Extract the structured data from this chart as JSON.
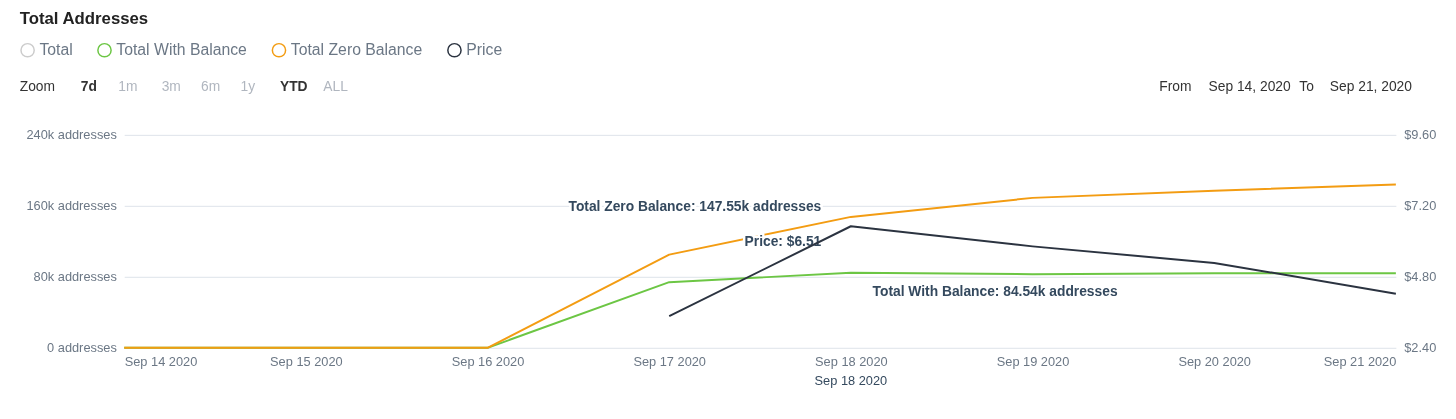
{
  "chart_data": {
    "type": "line",
    "title": "Total Addresses",
    "x": [
      "2020-09-14",
      "2020-09-15",
      "2020-09-16",
      "2020-09-17",
      "2020-09-18",
      "2020-09-19",
      "2020-09-20",
      "2020-09-21"
    ],
    "series": [
      {
        "name": "Total",
        "color": "#cccccc",
        "values": [
          null,
          null,
          null,
          null,
          null,
          null,
          null,
          null
        ]
      },
      {
        "name": "Total With Balance",
        "color": "#6cc644",
        "values": [
          0,
          0,
          0,
          74000,
          84540,
          83000,
          84000,
          84000
        ]
      },
      {
        "name": "Total Zero Balance",
        "color": "#f39c12",
        "values": [
          0,
          0,
          0,
          105000,
          147550,
          169000,
          177000,
          184000
        ]
      },
      {
        "name": "Price",
        "color": "#2b3340",
        "axis": "y2",
        "values": [
          null,
          null,
          null,
          3.47,
          6.51,
          5.83,
          5.27,
          4.23
        ]
      }
    ],
    "xlim": [
      "2020-09-14",
      "2020-09-21"
    ],
    "xticks": [
      {
        "value": "2020-09-14",
        "label": "Sep 14 2020"
      },
      {
        "value": "2020-09-15",
        "label": "Sep 15 2020"
      },
      {
        "value": "2020-09-16",
        "label": "Sep 16 2020"
      },
      {
        "value": "2020-09-17",
        "label": "Sep 17 2020"
      },
      {
        "value": "2020-09-18",
        "label": "Sep 18 2020"
      },
      {
        "value": "2020-09-19",
        "label": "Sep 19 2020"
      },
      {
        "value": "2020-09-20",
        "label": "Sep 20 2020"
      },
      {
        "value": "2020-09-21",
        "label": "Sep 21 2020"
      }
    ],
    "ylim": [
      0,
      240000
    ],
    "yticks": [
      {
        "value": 0,
        "label": "0 addresses"
      },
      {
        "value": 80000,
        "label": "80k addresses"
      },
      {
        "value": 160000,
        "label": "160k addresses"
      },
      {
        "value": 240000,
        "label": "240k addresses"
      }
    ],
    "y2lim": [
      2.4,
      9.6
    ],
    "y2ticks": [
      {
        "value": 2.4,
        "label": "$2.40"
      },
      {
        "value": 4.8,
        "label": "$4.80"
      },
      {
        "value": 7.2,
        "label": "$7.20"
      },
      {
        "value": 9.6,
        "label": "$9.60"
      }
    ],
    "grid": "y",
    "legend": "top left",
    "marker": "none",
    "line_style": "solid",
    "annotations": [
      {
        "text": "Total Zero Balance: 147.55k addresses",
        "x": "2020-09-18",
        "y": 147550
      },
      "Price: $6.51",
      {
        "text": "Total With Balance: 84.54k addresses",
        "x": "2020-09-18",
        "y": 84540
      },
      "Sep 18 2020",
      "Zoom",
      "7d",
      "1m",
      "3m",
      "6m",
      "1y",
      "YTD",
      "ALL",
      "From",
      "Sep 14, 2020",
      "To",
      "Sep 21, 2020"
    ]
  }
}
